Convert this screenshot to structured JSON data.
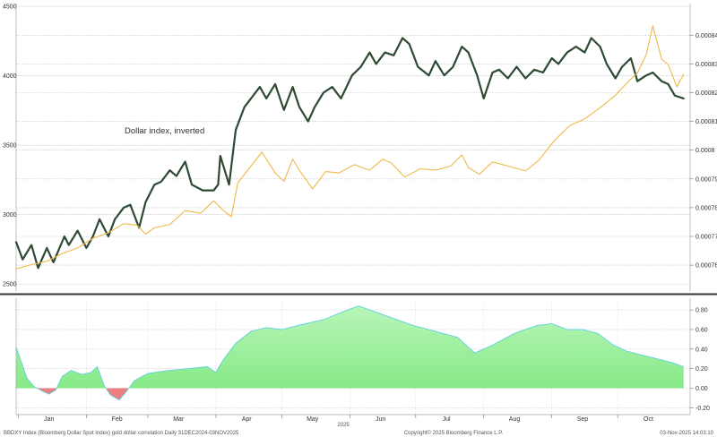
{
  "chart_data": [
    {
      "type": "line",
      "annotation": "Dollar index, inverted",
      "x_ticks": [
        "Jan",
        "Feb",
        "Mar",
        "Apr",
        "May",
        "Jun",
        "Jul",
        "Aug",
        "Sep",
        "Oct"
      ],
      "x_subtitle": "2025",
      "y_left": {
        "ticks": [
          2500,
          3000,
          3500,
          4000,
          4500
        ],
        "range": [
          2450,
          4520
        ]
      },
      "y_right": {
        "ticks": [
          "0.00076",
          "0.00077",
          "0.00078",
          "0.00079",
          "0.0008",
          "0.00081",
          "0.00082",
          "0.00083",
          "0.00084"
        ],
        "range": [
          0.000751,
          0.000851
        ]
      },
      "series": [
        {
          "color": "#2e4a33",
          "axis": "right",
          "points": [
            [
              "2024-12-31",
              0.000768
            ],
            [
              "2025-01-03",
              0.000762
            ],
            [
              "2025-01-07",
              0.000767
            ],
            [
              "2025-01-10",
              0.000759
            ],
            [
              "2025-01-14",
              0.000766
            ],
            [
              "2025-01-17",
              0.000761
            ],
            [
              "2025-01-22",
              0.00077
            ],
            [
              "2025-01-24",
              0.000767
            ],
            [
              "2025-01-28",
              0.000772
            ],
            [
              "2025-02-01",
              0.000766
            ],
            [
              "2025-02-04",
              0.00077
            ],
            [
              "2025-02-07",
              0.000776
            ],
            [
              "2025-02-11",
              0.00077
            ],
            [
              "2025-02-14",
              0.000776
            ],
            [
              "2025-02-18",
              0.00078
            ],
            [
              "2025-02-21",
              0.000781
            ],
            [
              "2025-02-25",
              0.000773
            ],
            [
              "2025-02-28",
              0.000782
            ],
            [
              "2025-03-04",
              0.000788
            ],
            [
              "2025-03-07",
              0.000789
            ],
            [
              "2025-03-11",
              0.000793
            ],
            [
              "2025-03-14",
              0.000791
            ],
            [
              "2025-03-18",
              0.000796
            ],
            [
              "2025-03-21",
              0.000788
            ],
            [
              "2025-03-26",
              0.000786
            ],
            [
              "2025-03-31",
              0.000786
            ],
            [
              "2025-04-02",
              0.000788
            ],
            [
              "2025-04-03",
              0.000798
            ],
            [
              "2025-04-07",
              0.000788
            ],
            [
              "2025-04-10",
              0.000807
            ],
            [
              "2025-04-14",
              0.000815
            ],
            [
              "2025-04-17",
              0.000818
            ],
            [
              "2025-04-21",
              0.000822
            ],
            [
              "2025-04-24",
              0.000818
            ],
            [
              "2025-04-28",
              0.000823
            ],
            [
              "2025-05-02",
              0.000814
            ],
            [
              "2025-05-06",
              0.000822
            ],
            [
              "2025-05-09",
              0.000815
            ],
            [
              "2025-05-13",
              0.00081
            ],
            [
              "2025-05-16",
              0.000815
            ],
            [
              "2025-05-20",
              0.00082
            ],
            [
              "2025-05-24",
              0.000822
            ],
            [
              "2025-05-28",
              0.000818
            ],
            [
              "2025-06-02",
              0.000826
            ],
            [
              "2025-06-06",
              0.000829
            ],
            [
              "2025-06-10",
              0.000834
            ],
            [
              "2025-06-13",
              0.00083
            ],
            [
              "2025-06-17",
              0.000834
            ],
            [
              "2025-06-21",
              0.000833
            ],
            [
              "2025-06-25",
              0.000839
            ],
            [
              "2025-06-28",
              0.000837
            ],
            [
              "2025-07-02",
              0.000829
            ],
            [
              "2025-07-07",
              0.000826
            ],
            [
              "2025-07-10",
              0.000831
            ],
            [
              "2025-07-14",
              0.000826
            ],
            [
              "2025-07-18",
              0.000829
            ],
            [
              "2025-07-22",
              0.000836
            ],
            [
              "2025-07-25",
              0.000834
            ],
            [
              "2025-07-29",
              0.000826
            ],
            [
              "2025-08-01",
              0.000818
            ],
            [
              "2025-08-05",
              0.000827
            ],
            [
              "2025-08-08",
              0.000828
            ],
            [
              "2025-08-12",
              0.000825
            ],
            [
              "2025-08-16",
              0.000829
            ],
            [
              "2025-08-20",
              0.000825
            ],
            [
              "2025-08-24",
              0.000828
            ],
            [
              "2025-08-28",
              0.000827
            ],
            [
              "2025-09-01",
              0.000832
            ],
            [
              "2025-09-04",
              0.00083
            ],
            [
              "2025-09-08",
              0.000834
            ],
            [
              "2025-09-12",
              0.000836
            ],
            [
              "2025-09-16",
              0.000834
            ],
            [
              "2025-09-19",
              0.000839
            ],
            [
              "2025-09-23",
              0.000836
            ],
            [
              "2025-09-26",
              0.00083
            ],
            [
              "2025-09-30",
              0.000825
            ],
            [
              "2025-10-03",
              0.000829
            ],
            [
              "2025-10-07",
              0.000832
            ],
            [
              "2025-10-10",
              0.000824
            ],
            [
              "2025-10-14",
              0.000826
            ],
            [
              "2025-10-17",
              0.000827
            ],
            [
              "2025-10-21",
              0.000824
            ],
            [
              "2025-10-24",
              0.000823
            ],
            [
              "2025-10-27",
              0.000819
            ],
            [
              "2025-10-31",
              0.000818
            ]
          ]
        },
        {
          "color": "#f0b84a",
          "axis": "left",
          "points": [
            [
              "2024-12-31",
              2610
            ],
            [
              "2025-01-07",
              2640
            ],
            [
              "2025-01-14",
              2665
            ],
            [
              "2025-01-21",
              2720
            ],
            [
              "2025-01-28",
              2760
            ],
            [
              "2025-02-04",
              2830
            ],
            [
              "2025-02-11",
              2870
            ],
            [
              "2025-02-18",
              2935
            ],
            [
              "2025-02-24",
              2925
            ],
            [
              "2025-02-28",
              2860
            ],
            [
              "2025-03-04",
              2905
            ],
            [
              "2025-03-11",
              2930
            ],
            [
              "2025-03-18",
              3030
            ],
            [
              "2025-03-25",
              3010
            ],
            [
              "2025-03-31",
              3100
            ],
            [
              "2025-04-04",
              3035
            ],
            [
              "2025-04-08",
              2985
            ],
            [
              "2025-04-11",
              3230
            ],
            [
              "2025-04-16",
              3330
            ],
            [
              "2025-04-22",
              3450
            ],
            [
              "2025-04-28",
              3300
            ],
            [
              "2025-05-02",
              3240
            ],
            [
              "2025-05-06",
              3400
            ],
            [
              "2025-05-09",
              3320
            ],
            [
              "2025-05-15",
              3185
            ],
            [
              "2025-05-21",
              3310
            ],
            [
              "2025-05-27",
              3300
            ],
            [
              "2025-06-03",
              3360
            ],
            [
              "2025-06-10",
              3320
            ],
            [
              "2025-06-16",
              3400
            ],
            [
              "2025-06-20",
              3370
            ],
            [
              "2025-06-26",
              3270
            ],
            [
              "2025-07-03",
              3330
            ],
            [
              "2025-07-10",
              3320
            ],
            [
              "2025-07-17",
              3350
            ],
            [
              "2025-07-22",
              3430
            ],
            [
              "2025-07-25",
              3340
            ],
            [
              "2025-07-30",
              3290
            ],
            [
              "2025-08-05",
              3380
            ],
            [
              "2025-08-12",
              3350
            ],
            [
              "2025-08-20",
              3315
            ],
            [
              "2025-08-26",
              3390
            ],
            [
              "2025-09-02",
              3530
            ],
            [
              "2025-09-09",
              3640
            ],
            [
              "2025-09-16",
              3690
            ],
            [
              "2025-09-23",
              3770
            ],
            [
              "2025-09-30",
              3860
            ],
            [
              "2025-10-06",
              3960
            ],
            [
              "2025-10-10",
              4020
            ],
            [
              "2025-10-14",
              4150
            ],
            [
              "2025-10-17",
              4360
            ],
            [
              "2025-10-21",
              4120
            ],
            [
              "2025-10-24",
              4080
            ],
            [
              "2025-10-28",
              3920
            ],
            [
              "2025-10-31",
              4010
            ]
          ]
        }
      ]
    },
    {
      "type": "area",
      "y_ticks": [
        "-0.20",
        "0.00",
        "0.20",
        "0.40",
        "0.60",
        "0.80"
      ],
      "y_range": [
        -0.27,
        0.92
      ],
      "positive_color": "#7fe87f",
      "negative_color": "#ea8080",
      "points": [
        [
          "2024-12-31",
          0.42
        ],
        [
          "2025-01-05",
          0.1
        ],
        [
          "2025-01-08",
          0.02
        ],
        [
          "2025-01-12",
          -0.03
        ],
        [
          "2025-01-15",
          -0.06
        ],
        [
          "2025-01-18",
          -0.02
        ],
        [
          "2025-01-21",
          0.12
        ],
        [
          "2025-01-25",
          0.18
        ],
        [
          "2025-01-30",
          0.14
        ],
        [
          "2025-02-03",
          0.16
        ],
        [
          "2025-02-06",
          0.22
        ],
        [
          "2025-02-09",
          0.03
        ],
        [
          "2025-02-12",
          -0.07
        ],
        [
          "2025-02-16",
          -0.12
        ],
        [
          "2025-02-19",
          -0.04
        ],
        [
          "2025-02-23",
          0.08
        ],
        [
          "2025-03-01",
          0.15
        ],
        [
          "2025-03-10",
          0.18
        ],
        [
          "2025-03-19",
          0.2
        ],
        [
          "2025-03-28",
          0.22
        ],
        [
          "2025-04-01",
          0.16
        ],
        [
          "2025-04-04",
          0.28
        ],
        [
          "2025-04-10",
          0.46
        ],
        [
          "2025-04-17",
          0.58
        ],
        [
          "2025-04-24",
          0.62
        ],
        [
          "2025-05-01",
          0.6
        ],
        [
          "2025-05-10",
          0.65
        ],
        [
          "2025-05-20",
          0.7
        ],
        [
          "2025-05-31",
          0.8
        ],
        [
          "2025-06-05",
          0.84
        ],
        [
          "2025-06-10",
          0.8
        ],
        [
          "2025-06-20",
          0.72
        ],
        [
          "2025-06-30",
          0.64
        ],
        [
          "2025-07-10",
          0.58
        ],
        [
          "2025-07-20",
          0.52
        ],
        [
          "2025-07-28",
          0.36
        ],
        [
          "2025-08-05",
          0.44
        ],
        [
          "2025-08-15",
          0.56
        ],
        [
          "2025-08-25",
          0.64
        ],
        [
          "2025-09-01",
          0.66
        ],
        [
          "2025-09-08",
          0.6
        ],
        [
          "2025-09-15",
          0.6
        ],
        [
          "2025-09-22",
          0.56
        ],
        [
          "2025-09-29",
          0.44
        ],
        [
          "2025-10-05",
          0.38
        ],
        [
          "2025-10-12",
          0.34
        ],
        [
          "2025-10-19",
          0.3
        ],
        [
          "2025-10-26",
          0.26
        ],
        [
          "2025-10-31",
          0.22
        ]
      ]
    }
  ],
  "footer": {
    "left": "BBDXY Index (Bloomberg Dollar Spot Index) gold dollar correlation Daily 31DEC2024-03NOV2025",
    "center": "Copyright© 2025 Bloomberg Finance L.P.",
    "right": "03-Nov-2025 14:03:10"
  }
}
